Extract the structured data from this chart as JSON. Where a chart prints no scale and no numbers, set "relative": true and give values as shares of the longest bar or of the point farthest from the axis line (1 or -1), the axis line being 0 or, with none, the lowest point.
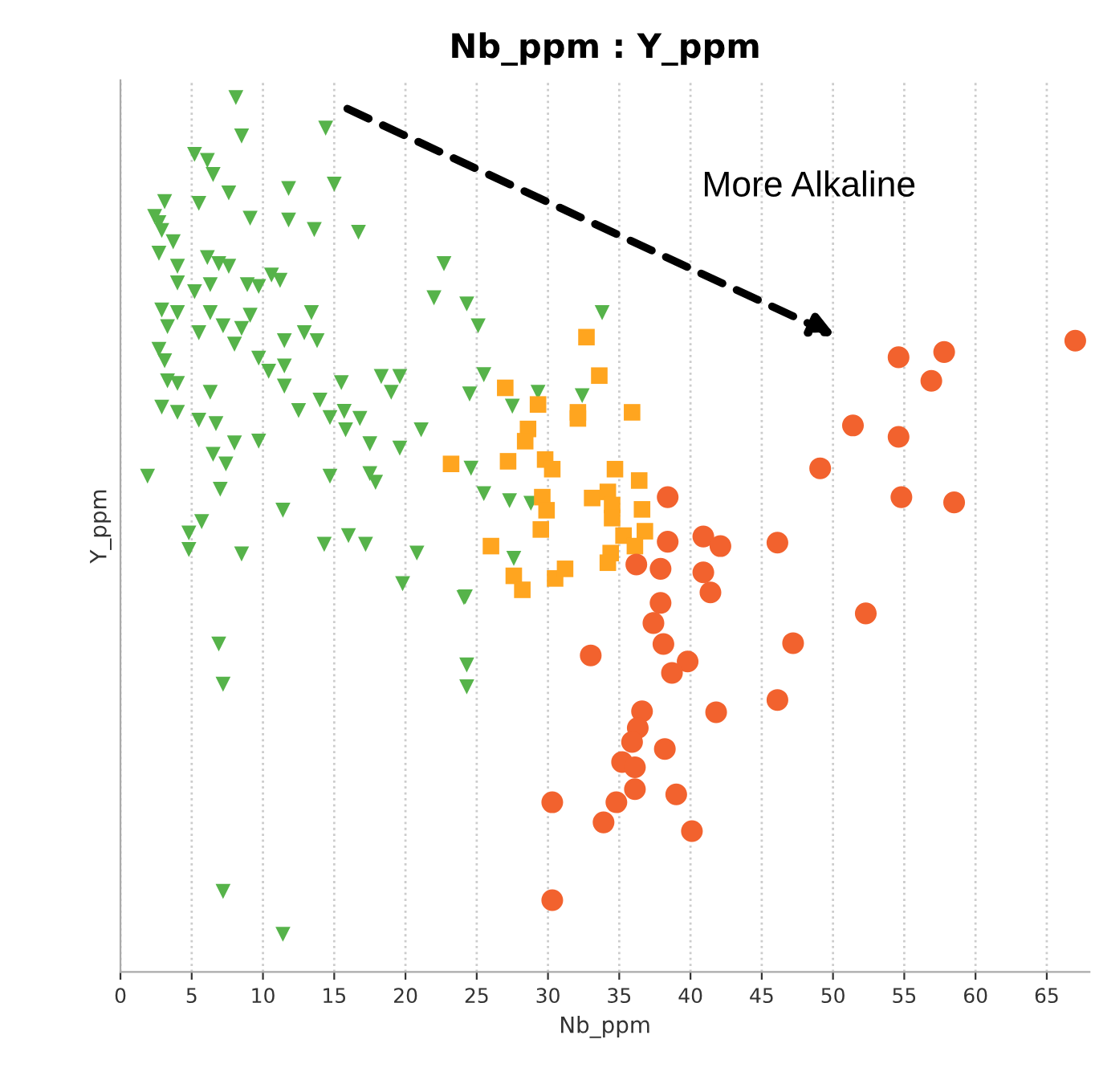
{
  "chart_data": {
    "type": "scatter",
    "title": "Nb_ppm : Y_ppm",
    "xlabel": "Nb_ppm",
    "ylabel": "Y_ppm",
    "relative": true,
    "xlim": [
      0,
      68
    ],
    "xticks": [
      0,
      5,
      10,
      15,
      20,
      25,
      30,
      35,
      40,
      45,
      50,
      55,
      60,
      65
    ],
    "grid": "x",
    "annotations": [
      "More Alkaline"
    ],
    "series": [
      {
        "color": "#56b34a",
        "marker": "triangle",
        "x": [
          8.1,
          8.5,
          14.4,
          5.2,
          6.1,
          6.5,
          7.6,
          11.8,
          15.0,
          3.1,
          5.5,
          2.4,
          2.7,
          2.9,
          9.1,
          11.8,
          13.6,
          16.7,
          3.7,
          2.7,
          22.7,
          4.0,
          6.1,
          6.9,
          7.6,
          10.6,
          11.2,
          4.0,
          5.2,
          6.3,
          8.9,
          9.7,
          22.0,
          2.9,
          4.0,
          6.3,
          9.1,
          13.4,
          3.3,
          5.5,
          7.2,
          8.5,
          8.0,
          11.5,
          12.9,
          13.8,
          2.7,
          3.1,
          9.7,
          10.4,
          11.5,
          3.3,
          4.0,
          6.3,
          11.5,
          15.5,
          18.3,
          19.6,
          19.0,
          2.9,
          4.0,
          5.5,
          6.7,
          12.5,
          14.0,
          14.7,
          15.7,
          16.8,
          15.8,
          21.1,
          8.0,
          9.7,
          6.5,
          7.4,
          17.5,
          19.6,
          1.9,
          14.7,
          17.5,
          7.0,
          17.9,
          11.4,
          5.7,
          4.8,
          4.8,
          8.5,
          14.3,
          16.0,
          17.2,
          20.8,
          24.3,
          25.1,
          33.8,
          25.5,
          24.5,
          27.5,
          29.3,
          32.4,
          24.6,
          25.5,
          27.3,
          28.8,
          27.6,
          24.2,
          6.9,
          7.2,
          19.8,
          24.1,
          7.2,
          11.4,
          24.3,
          24.3
        ],
        "values": [
          1.0,
          0.956,
          0.965,
          0.935,
          0.928,
          0.912,
          0.891,
          0.896,
          0.901,
          0.881,
          0.879,
          0.864,
          0.857,
          0.848,
          0.862,
          0.86,
          0.849,
          0.846,
          0.835,
          0.822,
          0.81,
          0.807,
          0.817,
          0.81,
          0.807,
          0.797,
          0.791,
          0.788,
          0.778,
          0.786,
          0.786,
          0.784,
          0.771,
          0.757,
          0.754,
          0.754,
          0.751,
          0.754,
          0.738,
          0.731,
          0.739,
          0.736,
          0.718,
          0.722,
          0.731,
          0.722,
          0.712,
          0.699,
          0.702,
          0.687,
          0.693,
          0.676,
          0.673,
          0.663,
          0.67,
          0.674,
          0.681,
          0.681,
          0.663,
          0.646,
          0.64,
          0.631,
          0.627,
          0.642,
          0.654,
          0.634,
          0.641,
          0.633,
          0.62,
          0.62,
          0.605,
          0.607,
          0.592,
          0.581,
          0.604,
          0.599,
          0.567,
          0.567,
          0.57,
          0.552,
          0.56,
          0.528,
          0.515,
          0.502,
          0.483,
          0.478,
          0.489,
          0.499,
          0.489,
          0.479,
          0.764,
          0.739,
          0.754,
          0.683,
          0.661,
          0.647,
          0.663,
          0.659,
          0.576,
          0.547,
          0.539,
          0.536,
          0.473,
          0.429,
          0.375,
          0.329,
          0.444,
          0.428,
          0.092,
          0.043,
          0.351,
          0.326
        ]
      },
      {
        "color": "#ffa51f",
        "marker": "square",
        "x": [
          32.7,
          33.6,
          27.0,
          29.3,
          32.1,
          32.1,
          35.9,
          28.6,
          28.4,
          23.2,
          27.2,
          29.8,
          30.3,
          34.7,
          36.4,
          33.1,
          34.2,
          34.5,
          34.5,
          29.6,
          29.9,
          36.6,
          29.5,
          36.8,
          35.3,
          26.0,
          36.1,
          34.4,
          34.2,
          27.6,
          28.2,
          30.5,
          31.2
        ],
        "values": [
          0.726,
          0.682,
          0.668,
          0.649,
          0.64,
          0.633,
          0.64,
          0.621,
          0.607,
          0.581,
          0.584,
          0.586,
          0.575,
          0.575,
          0.562,
          0.542,
          0.549,
          0.534,
          0.519,
          0.543,
          0.528,
          0.529,
          0.506,
          0.504,
          0.499,
          0.487,
          0.487,
          0.479,
          0.468,
          0.453,
          0.437,
          0.45,
          0.461
        ]
      },
      {
        "color": "#f2622e",
        "marker": "circle",
        "x": [
          38.4,
          38.4,
          40.9,
          42.1,
          36.2,
          37.9,
          40.9,
          41.4,
          37.9,
          37.4,
          38.1,
          33.0,
          39.8,
          38.7,
          36.6,
          36.3,
          35.9,
          35.2,
          36.1,
          38.2,
          41.8,
          36.1,
          39.0,
          30.3,
          34.8,
          33.9,
          40.1,
          30.3,
          67.0,
          54.6,
          57.8,
          56.9,
          51.4,
          54.6,
          49.1,
          54.8,
          58.5,
          46.1,
          52.3,
          47.2,
          46.1
        ],
        "values": [
          0.543,
          0.492,
          0.498,
          0.487,
          0.466,
          0.461,
          0.457,
          0.434,
          0.422,
          0.399,
          0.375,
          0.362,
          0.355,
          0.342,
          0.298,
          0.279,
          0.263,
          0.24,
          0.234,
          0.255,
          0.297,
          0.209,
          0.203,
          0.194,
          0.194,
          0.171,
          0.161,
          0.082,
          0.722,
          0.703,
          0.709,
          0.676,
          0.625,
          0.612,
          0.576,
          0.543,
          0.537,
          0.491,
          0.41,
          0.376,
          0.311
        ]
      }
    ]
  }
}
